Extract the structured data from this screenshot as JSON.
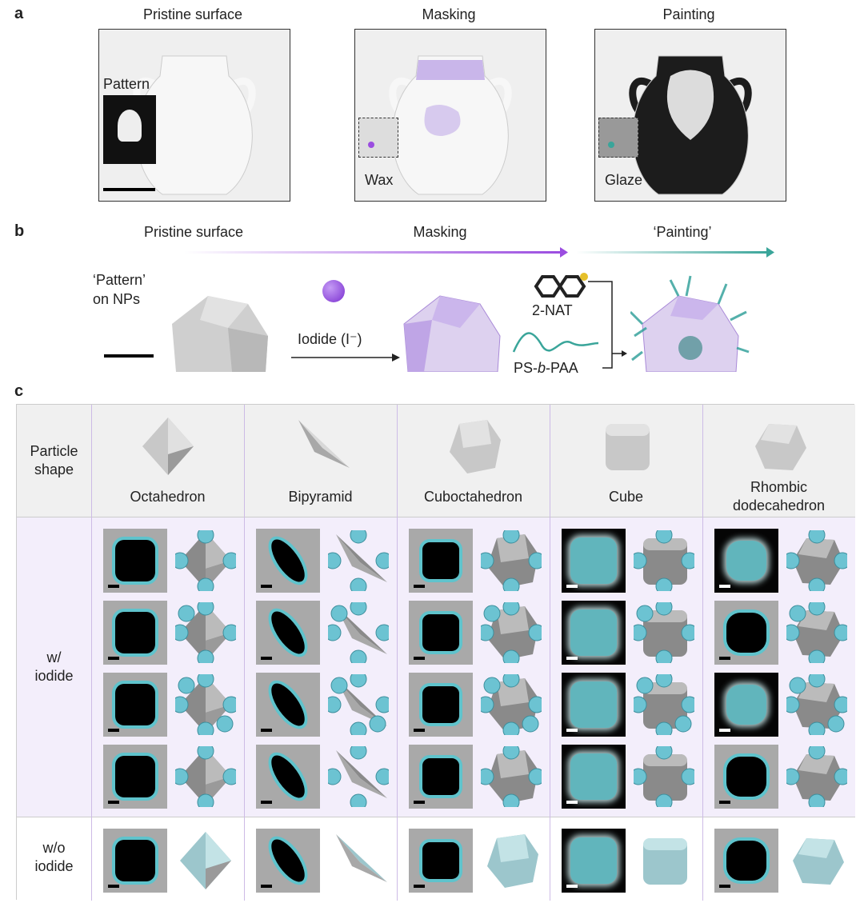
{
  "panel_a": {
    "label": "a",
    "steps": [
      {
        "title": "Pristine surface",
        "callout": "Pattern"
      },
      {
        "title": "Masking",
        "callout": "Wax"
      },
      {
        "title": "Painting",
        "callout": "Glaze"
      }
    ]
  },
  "panel_b": {
    "label": "b",
    "stages": [
      "Pristine surface",
      "Masking",
      "‘Painting’"
    ],
    "pattern_label_1": "‘Pattern’",
    "pattern_label_2": "on NPs",
    "iodide_label": "Iodide (I⁻)",
    "ligand_1": "2-NAT",
    "ligand_2_pre": "PS-",
    "ligand_2_it": "b",
    "ligand_2_post": "-PAA",
    "colors": {
      "masking": "#9b4de0",
      "painting": "#3aa59a"
    }
  },
  "panel_c": {
    "label": "c",
    "header_label_1": "Particle",
    "header_label_2": "shape",
    "row_label_iodide_1": "w/",
    "row_label_iodide_2": "iodide",
    "row_label_none_1": "w/o",
    "row_label_none_2": "iodide",
    "shapes": [
      {
        "name": "Octahedron",
        "tem": [
          "light",
          "light",
          "light",
          "light",
          "light"
        ]
      },
      {
        "name": "Bipyramid",
        "tem": [
          "light",
          "light",
          "light",
          "light",
          "light"
        ]
      },
      {
        "name": "Cuboctahedron",
        "tem": [
          "light",
          "light",
          "light",
          "light",
          "light"
        ]
      },
      {
        "name": "Cube",
        "tem": [
          "dark",
          "dark",
          "dark",
          "dark",
          "dark"
        ]
      },
      {
        "name": "Rhombic",
        "name2": "dodecahedron",
        "tem": [
          "dark",
          "light",
          "dark",
          "light",
          "light"
        ]
      }
    ],
    "colors": {
      "ligand": "#6cc3d2",
      "iodide_bg": "#f3eefb"
    }
  }
}
